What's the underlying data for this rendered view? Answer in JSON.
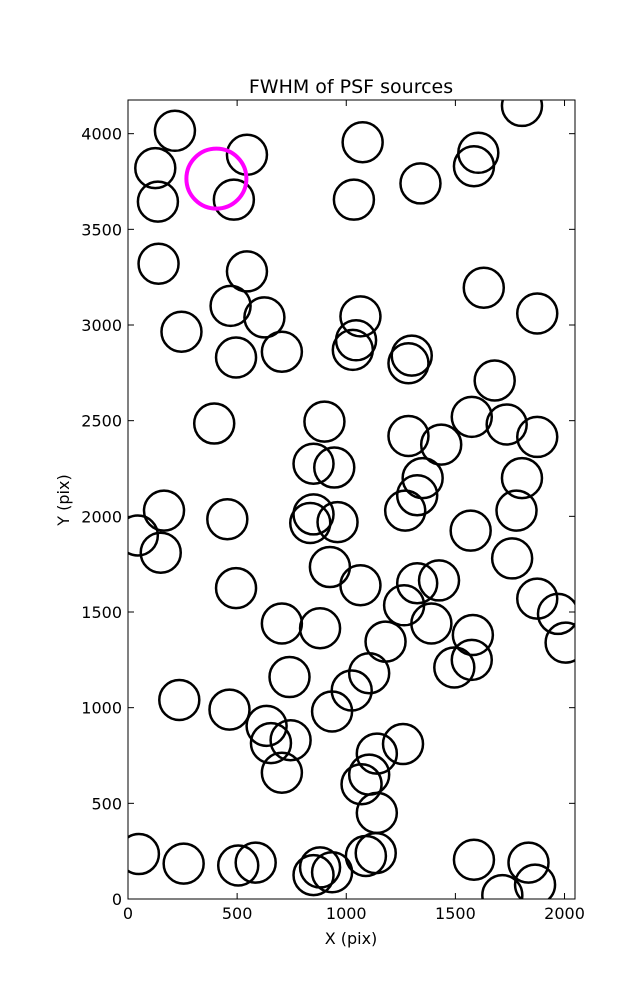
{
  "chart_data": {
    "type": "scatter",
    "title": "FWHM of PSF sources",
    "xlabel": "X (pix)",
    "ylabel": "Y (pix)",
    "xlim": [
      0,
      2048
    ],
    "ylim": [
      0,
      4176
    ],
    "xticks": [
      0,
      500,
      1000,
      1500,
      2000
    ],
    "yticks": [
      0,
      500,
      1000,
      1500,
      2000,
      2500,
      3000,
      3500,
      4000
    ],
    "grid": false,
    "marker": "open circle",
    "colors": {
      "default": "#000000",
      "highlight": "#ff00ff"
    },
    "highlight": {
      "x": 405,
      "y": 3765
    },
    "points": [
      [
        215,
        4015
      ],
      [
        125,
        3820
      ],
      [
        137,
        3645
      ],
      [
        485,
        3655
      ],
      [
        545,
        3890
      ],
      [
        1075,
        3955
      ],
      [
        1035,
        3655
      ],
      [
        1340,
        3740
      ],
      [
        1605,
        3900
      ],
      [
        1585,
        3830
      ],
      [
        1805,
        4145
      ],
      [
        140,
        3320
      ],
      [
        545,
        3280
      ],
      [
        470,
        3100
      ],
      [
        625,
        3040
      ],
      [
        245,
        2965
      ],
      [
        495,
        2830
      ],
      [
        705,
        2860
      ],
      [
        1065,
        3045
      ],
      [
        1045,
        2920
      ],
      [
        1030,
        2870
      ],
      [
        1285,
        2800
      ],
      [
        1300,
        2840
      ],
      [
        1630,
        3195
      ],
      [
        1875,
        3060
      ],
      [
        1680,
        2710
      ],
      [
        1575,
        2520
      ],
      [
        1735,
        2480
      ],
      [
        1875,
        2415
      ],
      [
        1285,
        2420
      ],
      [
        1435,
        2375
      ],
      [
        1350,
        2200
      ],
      [
        1325,
        2110
      ],
      [
        1270,
        2030
      ],
      [
        1805,
        2200
      ],
      [
        1780,
        2030
      ],
      [
        1570,
        1925
      ],
      [
        1760,
        1780
      ],
      [
        1875,
        1570
      ],
      [
        1970,
        1490
      ],
      [
        2005,
        1340
      ],
      [
        900,
        2495
      ],
      [
        850,
        2275
      ],
      [
        945,
        2255
      ],
      [
        850,
        2010
      ],
      [
        835,
        1965
      ],
      [
        960,
        1970
      ],
      [
        925,
        1735
      ],
      [
        1065,
        1640
      ],
      [
        1325,
        1650
      ],
      [
        1425,
        1665
      ],
      [
        1265,
        1535
      ],
      [
        1390,
        1440
      ],
      [
        1580,
        1380
      ],
      [
        1495,
        1210
      ],
      [
        1575,
        1250
      ],
      [
        395,
        2485
      ],
      [
        165,
        2030
      ],
      [
        45,
        1900
      ],
      [
        150,
        1810
      ],
      [
        455,
        1985
      ],
      [
        495,
        1625
      ],
      [
        705,
        1440
      ],
      [
        880,
        1415
      ],
      [
        1180,
        1345
      ],
      [
        740,
        1160
      ],
      [
        1105,
        1180
      ],
      [
        1025,
        1090
      ],
      [
        935,
        980
      ],
      [
        235,
        1040
      ],
      [
        465,
        990
      ],
      [
        635,
        905
      ],
      [
        655,
        815
      ],
      [
        745,
        830
      ],
      [
        705,
        660
      ],
      [
        1140,
        760
      ],
      [
        1260,
        810
      ],
      [
        1105,
        650
      ],
      [
        1070,
        600
      ],
      [
        1140,
        450
      ],
      [
        50,
        235
      ],
      [
        255,
        185
      ],
      [
        505,
        175
      ],
      [
        585,
        190
      ],
      [
        850,
        125
      ],
      [
        880,
        165
      ],
      [
        935,
        140
      ],
      [
        1090,
        225
      ],
      [
        1135,
        240
      ],
      [
        1585,
        205
      ],
      [
        1715,
        20
      ],
      [
        1835,
        190
      ],
      [
        1865,
        75
      ]
    ]
  }
}
